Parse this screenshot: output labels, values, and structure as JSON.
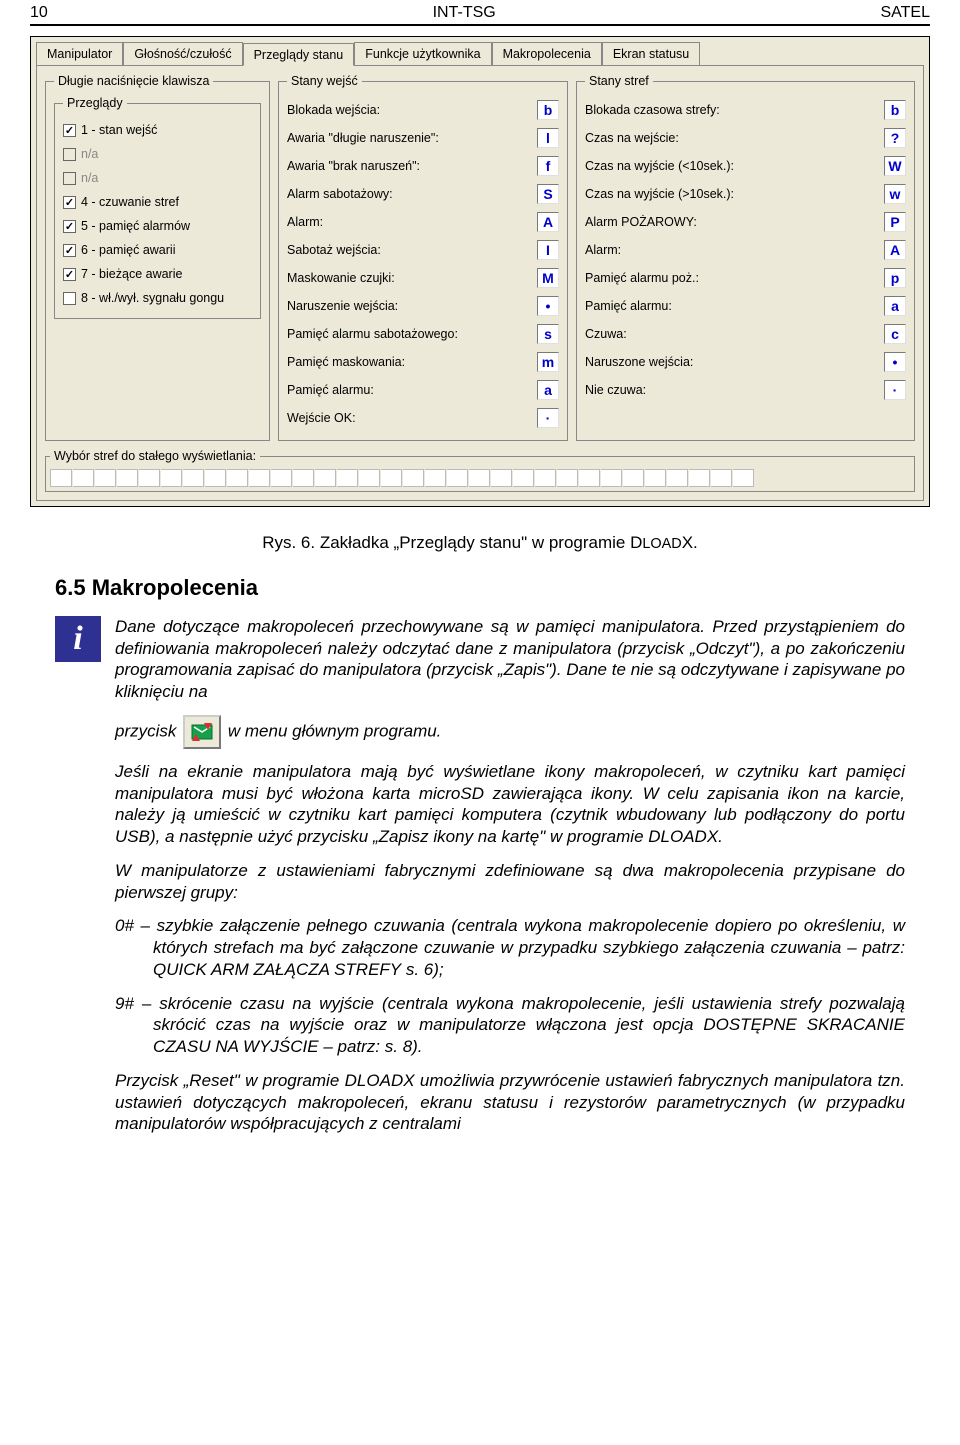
{
  "header": {
    "page": "10",
    "doc": "INT-TSG",
    "brand": "SATEL"
  },
  "app": {
    "tabs": [
      "Manipulator",
      "Głośność/czułość",
      "Przeglądy stanu",
      "Funkcje użytkownika",
      "Makropolecenia",
      "Ekran statusu"
    ],
    "activeTab": 2,
    "leftGroup": {
      "legend": "Długie naciśnięcie klawisza",
      "subLegend": "Przeglądy",
      "items": [
        {
          "label": "1 - stan wejść",
          "checked": true,
          "disabled": false
        },
        {
          "label": "n/a",
          "checked": false,
          "disabled": true
        },
        {
          "label": "n/a",
          "checked": false,
          "disabled": true
        },
        {
          "label": "4 - czuwanie stref",
          "checked": true,
          "disabled": false
        },
        {
          "label": "5 - pamięć alarmów",
          "checked": true,
          "disabled": false
        },
        {
          "label": "6 - pamięć awarii",
          "checked": true,
          "disabled": false
        },
        {
          "label": "7 - bieżące awarie",
          "checked": true,
          "disabled": false
        },
        {
          "label": "8 - wł./wył. sygnału gongu",
          "checked": false,
          "disabled": false
        }
      ]
    },
    "midGroup": {
      "legend": "Stany wejść",
      "rows": [
        {
          "label": "Blokada wejścia:",
          "val": "b"
        },
        {
          "label": "Awaria \"długie naruszenie\":",
          "val": "l"
        },
        {
          "label": "Awaria \"brak naruszeń\":",
          "val": "f"
        },
        {
          "label": "Alarm sabotażowy:",
          "val": "S"
        },
        {
          "label": "Alarm:",
          "val": "A"
        },
        {
          "label": "Sabotaż wejścia:",
          "val": "I"
        },
        {
          "label": "Maskowanie czujki:",
          "val": "M"
        },
        {
          "label": "Naruszenie wejścia:",
          "val": "•"
        },
        {
          "label": "Pamięć alarmu sabotażowego:",
          "val": "s"
        },
        {
          "label": "Pamięć maskowania:",
          "val": "m"
        },
        {
          "label": "Pamięć alarmu:",
          "val": "a"
        },
        {
          "label": "Wejście OK:",
          "val": "·"
        }
      ]
    },
    "rightGroup": {
      "legend": "Stany stref",
      "rows": [
        {
          "label": "Blokada czasowa strefy:",
          "val": "b"
        },
        {
          "label": "Czas na wejście:",
          "val": "?"
        },
        {
          "label": "Czas na wyjście (<10sek.):",
          "val": "W"
        },
        {
          "label": "Czas na wyjście (>10sek.):",
          "val": "w"
        },
        {
          "label": "Alarm POŻAROWY:",
          "val": "P"
        },
        {
          "label": "Alarm:",
          "val": "A"
        },
        {
          "label": "Pamięć alarmu poż.:",
          "val": "p"
        },
        {
          "label": "Pamięć alarmu:",
          "val": "a"
        },
        {
          "label": "Czuwa:",
          "val": "c"
        },
        {
          "label": "Naruszone wejścia:",
          "val": "•"
        },
        {
          "label": "Nie czuwa:",
          "val": "·"
        }
      ]
    },
    "zones": {
      "legend": "Wybór stref do stałego wyświetlania:",
      "count": 32
    }
  },
  "caption": "Rys. 6. Zakładka „Przeglądy stanu\" w programie DLOADX.",
  "sectionTitle": "6.5 Makropolecenia",
  "p1a": "Dane dotyczące makropoleceń przechowywane są w pamięci manipulatora. Przed przystąpieniem do definiowania makropoleceń należy odczytać dane z manipulatora (przycisk „Odczyt\"), a po zakończeniu programowania zapisać do manipulatora (przycisk „Zapis\"). Dane te nie są odczytywane i zapisywane po kliknięciu na",
  "p1b_pre": "przycisk",
  "p1b_post": "w menu głównym programu.",
  "p2": "Jeśli na ekranie manipulatora mają być wyświetlane ikony makropoleceń, w czytniku kart pamięci manipulatora musi być włożona karta microSD zawierająca ikony. W celu zapisania ikon na karcie, należy ją umieścić w czytniku kart pamięci komputera (czytnik wbudowany lub podłączony do portu USB), a następnie użyć przycisku „Zapisz ikony na kartę\" w programie DLOADX.",
  "p3": "W manipulatorze z ustawieniami fabrycznymi zdefiniowane są dwa makropolecenia przypisane do pierwszej grupy:",
  "p4": "0# – szybkie załączenie pełnego czuwania (centrala wykona makropolecenie dopiero po określeniu, w których strefach ma być załączone czuwanie w przypadku szybkiego załączenia czuwania – patrz: QUICK ARM ZAŁĄCZA STREFY s. 6);",
  "p5": "9# – skrócenie czasu na wyjście (centrala wykona makropolecenie, jeśli ustawienia strefy pozwalają skrócić czas na wyjście oraz w manipulatorze włączona jest opcja DOSTĘPNE SKRACANIE CZASU NA WYJŚCIE – patrz: s. 8).",
  "p6": "Przycisk „Reset\" w programie DLOADX umożliwia przywrócenie ustawień fabrycznych manipulatora tzn. ustawień dotyczących makropoleceń, ekranu statusu i rezystorów parametrycznych (w przypadku manipulatorów współpracujących z centralami"
}
